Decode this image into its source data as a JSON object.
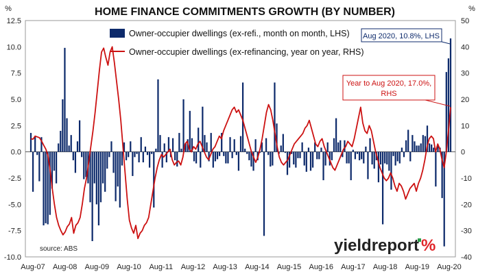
{
  "chart_data": {
    "type": "bar+line",
    "title": "HOME FINANCE COMMITMENTS GROWTH (BY NUMBER)",
    "left_axis_unit": "%",
    "right_axis_unit": "%",
    "ylim_left": [
      -10,
      12.5
    ],
    "ylim_right": [
      -40,
      50
    ],
    "y_ticks_left": [
      "12.5",
      "10.0",
      "7.5",
      "5.0",
      "2.5",
      "0.0",
      "-2.5",
      "-5.0",
      "-7.5",
      "-10.0"
    ],
    "y_ticks_right": [
      "50",
      "40",
      "30",
      "20",
      "10",
      "0",
      "-10",
      "-20",
      "-30",
      "-40"
    ],
    "x_ticks": [
      "Aug-07",
      "Aug-08",
      "Aug-09",
      "Aug-10",
      "Aug-11",
      "Aug-12",
      "Aug-13",
      "Aug-14",
      "Aug-15",
      "Aug-16",
      "Aug-17",
      "Aug-18",
      "Aug-19",
      "Aug-20"
    ],
    "x_start": "Aug-07",
    "x_end": "Aug-20",
    "grid": false,
    "legend_position": "top-center",
    "series": [
      {
        "name": "Owner-occupier dwellings (ex-refi., month on month, LHS)",
        "type": "bar",
        "axis": "left",
        "color": "#0d2a6b",
        "values": [
          1.8,
          -3.8,
          1.5,
          -0.3,
          -2.8,
          1.4,
          -7.0,
          -6.8,
          -6.9,
          -6.0,
          -3.5,
          -1.8,
          -3.0,
          0.8,
          2.0,
          5.0,
          9.9,
          3.2,
          0.6,
          1.6,
          -0.8,
          -2.0,
          1.0,
          3.0,
          -0.5,
          -2.6,
          -2.4,
          -3.0,
          -4.8,
          -8.5,
          -3.0,
          -5.0,
          -7.0,
          -4.8,
          -3.0,
          -3.8,
          -1.6,
          -0.5,
          1.0,
          -2.0,
          -4.7,
          -3.3,
          -5.3,
          -1.3,
          0.9,
          -0.8,
          -0.5,
          1.0,
          -2.3,
          -0.5,
          -0.2,
          -1.0,
          1.4,
          -1.0,
          0.5,
          -0.3,
          -1.5,
          -0.2,
          -5.3,
          0.3,
          6.9,
          1.6,
          -1.5,
          0.8,
          -1.0,
          1.4,
          -0.5,
          1.3,
          -0.8,
          -1.4,
          1.8,
          0.3,
          5.0,
          0.8,
          1.2,
          3.9,
          1.3,
          -0.9,
          -1.1,
          2.3,
          -1.5,
          4.3,
          1.6,
          0.9,
          -0.9,
          1.8,
          -1.5,
          -0.9,
          -0.7,
          -0.4,
          1.8,
          -0.4,
          -1.1,
          -1.1,
          1.4,
          -0.6,
          1.2,
          -0.3,
          -1.8,
          1.5,
          6.6,
          0.3,
          -0.2,
          -0.8,
          -1.4,
          -1.8,
          1.2,
          -0.8,
          -0.1,
          0.9,
          -8.0,
          1.3,
          -0.3,
          -1.4,
          -1.3,
          6.6,
          2.7,
          -0.2,
          0.6,
          1.7,
          -0.1,
          -2.2,
          -1.5,
          -0.2,
          -1.2,
          -1.5,
          -0.6,
          -0.6,
          0.9,
          -1.3,
          -1.9,
          0.4,
          -1.8,
          -1.5,
          0.9,
          -0.7,
          -0.7,
          0.4,
          -2.7,
          -1.3,
          0.9,
          -1.3,
          -0.8,
          1.3,
          3.2,
          0.9,
          1.1,
          -0.5,
          1.1,
          -1.1,
          -1.1,
          -2.7,
          0.2,
          -0.7,
          -0.2,
          -0.8,
          -0.7,
          -1.1,
          0.5,
          -2.6,
          1.3,
          -1.2,
          -1.6,
          -0.8,
          -2.9,
          -1.2,
          -6.9,
          -1.1,
          -1.2,
          -1.8,
          -3.6,
          -0.4,
          -1.3,
          -0.9,
          -1.1,
          0.4,
          -0.5,
          1.1,
          2.1,
          -0.9,
          1.6,
          1.0,
          0.6,
          0.6,
          0.8,
          1.6,
          1.5,
          2.5,
          0.8,
          0.7,
          0.4,
          -3.3,
          0.7,
          0.4,
          -4.4,
          -9.0,
          7.6,
          8.9,
          10.8
        ],
        "color_left_bar": "#0d2a6b"
      },
      {
        "name": "Owner-occupier dwellings (ex-refinancing, year on year, RHS)",
        "type": "line",
        "axis": "right",
        "color": "#cc1111",
        "values": [
          5.0,
          4.8,
          6.0,
          5.7,
          5.4,
          4.1,
          2.5,
          1.0,
          -1.5,
          -7.0,
          -14.0,
          -20.0,
          -25.0,
          -28.0,
          -30.0,
          -31.6,
          -30.5,
          -28.5,
          -27.5,
          -25.0,
          -31.0,
          -28.0,
          -27.0,
          -25.0,
          -20.0,
          -14.0,
          -10.0,
          -4.0,
          2.0,
          8.0,
          15.0,
          23.0,
          31.0,
          38.0,
          39.5,
          36.0,
          33.0,
          38.0,
          40.0,
          34.0,
          27.0,
          20.0,
          12.0,
          2.0,
          -8.0,
          -18.0,
          -26.0,
          -29.0,
          -31.0,
          -28.0,
          -33.0,
          -31.0,
          -30.0,
          -28.0,
          -27.0,
          -25.0,
          -20.0,
          -15.0,
          -10.0,
          -6.0,
          -3.0,
          -1.0,
          -2.0,
          -1.0,
          0.0,
          1.0,
          -3.0,
          -5.0,
          -4.0,
          -3.5,
          -5.0,
          -2.0,
          3.0,
          4.0,
          1.0,
          0.0,
          2.0,
          1.0,
          3.0,
          4.0,
          2.0,
          0.0,
          -2.0,
          -3.0,
          -1.0,
          1.0,
          2.0,
          4.0,
          6.0,
          5.0,
          8.0,
          10.0,
          12.0,
          14.0,
          16.0,
          17.0,
          15.0,
          16.0,
          14.0,
          12.0,
          9.0,
          6.0,
          3.0,
          0.0,
          -2.0,
          -4.0,
          -2.0,
          1.0,
          5.0,
          10.0,
          15.0,
          18.0,
          16.0,
          12.0,
          7.0,
          2.0,
          -2.0,
          -4.0,
          -5.0,
          -4.0,
          -3.0,
          -1.0,
          1.0,
          3.0,
          4.0,
          5.0,
          6.0,
          7.0,
          9.0,
          10.0,
          12.0,
          9.0,
          6.0,
          3.0,
          2.0,
          4.0,
          5.0,
          2.0,
          0.0,
          -2.0,
          -4.0,
          -6.0,
          -7.0,
          -5.0,
          -3.0,
          -1.0,
          1.0,
          2.0,
          4.0,
          3.0,
          2.0,
          5.0,
          9.0,
          13.0,
          17.0,
          11.0,
          8.0,
          7.0,
          10.0,
          8.0,
          4.0,
          0.0,
          -3.0,
          -6.0,
          -8.0,
          -10.0,
          -11.0,
          -10.0,
          -8.0,
          -10.0,
          -13.0,
          -15.0,
          -12.0,
          -13.0,
          -15.0,
          -18.0,
          -16.0,
          -14.0,
          -13.0,
          -12.0,
          -15.0,
          -12.0,
          -10.0,
          -7.0,
          -3.0,
          2.0,
          5.0,
          6.0,
          5.0,
          0.0,
          3.0,
          1.0,
          -3.0,
          -6.0,
          0.0,
          8.0,
          17.0
        ]
      }
    ],
    "annotations": [
      {
        "lines": [
          "Aug 2020, 10.8%, LHS"
        ],
        "color": "#0d2a6b"
      },
      {
        "lines": [
          "Year to Aug 2020, 17.0%,",
          "RHS"
        ],
        "color": "#cc1111"
      }
    ],
    "source": "source: ABS"
  },
  "brand": {
    "text": "yieldreport",
    "symbol": "%",
    "text_color": "#222222",
    "symbol_color": "#e0262a",
    "accent_color": "#2a9d4a"
  }
}
